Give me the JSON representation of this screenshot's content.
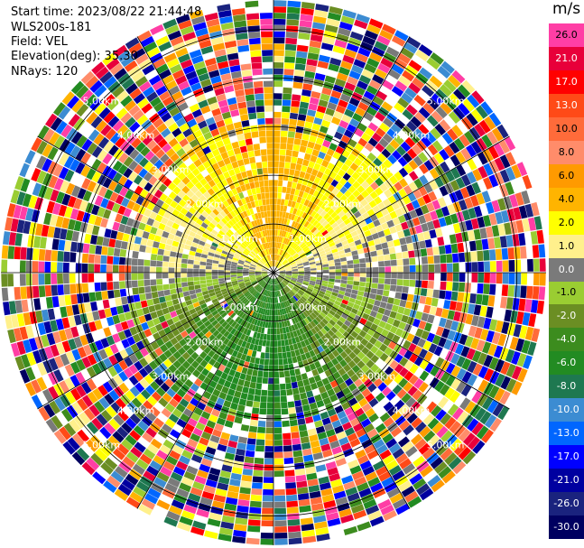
{
  "header": {
    "start_time": "Start time: 2023/08/22 21:44:48",
    "instrument": "WLS200s-181",
    "field": "Field: VEL",
    "elevation": "Elevation(deg): 35.30",
    "nrays": "NRays: 120"
  },
  "colorbar": {
    "unit": "m/s",
    "ticks": [
      "26.0",
      "21.0",
      "17.0",
      "13.0",
      "10.0",
      "8.0",
      "6.0",
      "4.0",
      "2.0",
      "1.0",
      "0.0",
      "-1.0",
      "-2.0",
      "-4.0",
      "-6.0",
      "-8.0",
      "-10.0",
      "-13.0",
      "-17.0",
      "-21.0",
      "-26.0",
      "-30.0"
    ],
    "colors": [
      "#ff3ea5",
      "#e8003a",
      "#ff0000",
      "#ff4a17",
      "#ff6b3a",
      "#ff8c6a",
      "#ff9a00",
      "#ffb400",
      "#ffff00",
      "#fff08c",
      "#7a7a7a",
      "#9acd32",
      "#6b8e23",
      "#3c8c1e",
      "#228b22",
      "#1e7850",
      "#3c8cd2",
      "#0066ff",
      "#0000ff",
      "#0000a0",
      "#1a237e",
      "#000060"
    ]
  },
  "chart_data": {
    "type": "ppi",
    "field": "VEL",
    "unit": "m/s",
    "nrays": 120,
    "elevation_deg": 35.3,
    "range_ring_labels": [
      "1.00km",
      "2.00km",
      "3.00km",
      "4.00km",
      "5.00km"
    ],
    "ring_label_text": [
      "1.00km",
      "1.00km",
      "1.00km",
      "1.00km",
      "2.00km",
      "2.00km",
      "2.00km",
      "2.00km",
      "3.00km",
      "3.00km",
      "3.00km",
      "3.00km",
      "4.00km",
      "4.00km",
      "4.00km",
      "4.00km",
      "5.00km",
      "5.00km",
      "5.00km",
      "5.00km"
    ],
    "max_range_km": 5.6,
    "velocity_regions": [
      {
        "sector": "north",
        "near_range": "0-3 km",
        "value_ms": 4.0
      },
      {
        "sector": "north-east",
        "near_range": "0-3 km",
        "value_ms": 2.0
      },
      {
        "sector": "east",
        "near_range": "0-3 km",
        "value_ms": 0.0
      },
      {
        "sector": "south-east",
        "near_range": "0-3 km",
        "value_ms": -2.0
      },
      {
        "sector": "south",
        "near_range": "0-3 km",
        "value_ms": -6.0
      },
      {
        "sector": "south-west",
        "near_range": "0-3 km",
        "value_ms": -4.0
      },
      {
        "sector": "west",
        "near_range": "0-2 km",
        "value_ms": 0.0
      },
      {
        "sector": "north-west",
        "near_range": "0-2 km",
        "value_ms": 2.0
      }
    ],
    "far_range": "noise (all colors) beyond ~3 km"
  }
}
